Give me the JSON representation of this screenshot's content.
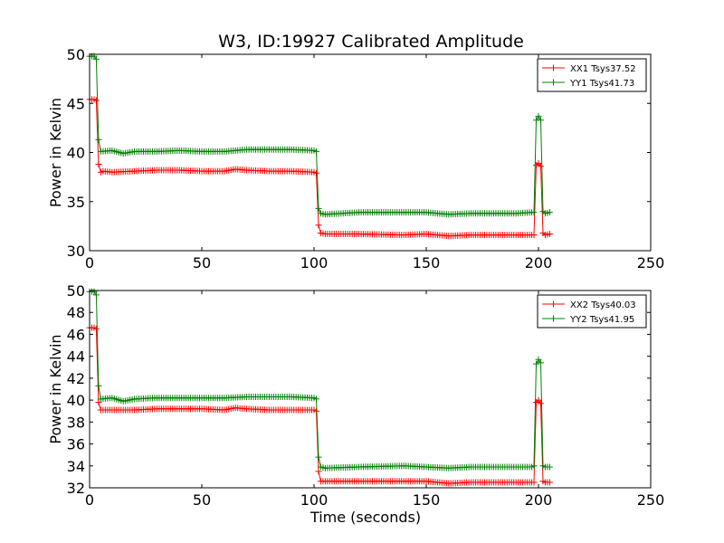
{
  "title": "W3, ID:19927 Calibrated Amplitude",
  "colors": {
    "xx": "#ff0000",
    "yy": "#008000"
  },
  "chart_data": [
    {
      "type": "line",
      "title": "W3, ID:19927 Calibrated Amplitude",
      "xlabel": "",
      "ylabel": "Power in Kelvin",
      "xlim": [
        0,
        250
      ],
      "ylim": [
        30,
        50
      ],
      "xticks": [
        0,
        50,
        100,
        150,
        200,
        250
      ],
      "yticks": [
        30,
        35,
        40,
        45,
        50
      ],
      "grid": false,
      "legend_position": "top-right",
      "series": [
        {
          "name": "XX1 Tsys37.52",
          "color": "#ff0000",
          "points": [
            [
              0,
              45.4
            ],
            [
              1,
              45.4
            ],
            [
              2,
              45.4
            ],
            [
              3,
              45.3
            ],
            [
              4,
              38.8
            ],
            [
              5,
              38.0
            ],
            [
              6,
              38.1
            ],
            [
              10,
              38.0
            ],
            [
              20,
              38.1
            ],
            [
              30,
              38.2
            ],
            [
              40,
              38.2
            ],
            [
              50,
              38.1
            ],
            [
              60,
              38.1
            ],
            [
              65,
              38.3
            ],
            [
              70,
              38.2
            ],
            [
              80,
              38.1
            ],
            [
              90,
              38.1
            ],
            [
              100,
              38.0
            ],
            [
              101,
              37.9
            ],
            [
              102,
              32.6
            ],
            [
              103,
              31.8
            ],
            [
              105,
              31.7
            ],
            [
              120,
              31.7
            ],
            [
              140,
              31.6
            ],
            [
              150,
              31.7
            ],
            [
              160,
              31.5
            ],
            [
              170,
              31.6
            ],
            [
              180,
              31.6
            ],
            [
              190,
              31.6
            ],
            [
              197,
              31.6
            ],
            [
              198,
              31.6
            ],
            [
              199,
              38.7
            ],
            [
              200,
              38.9
            ],
            [
              201,
              38.6
            ],
            [
              202,
              31.8
            ],
            [
              203,
              31.6
            ],
            [
              205,
              31.7
            ]
          ]
        },
        {
          "name": "YY1 Tsys41.73",
          "color": "#008000",
          "points": [
            [
              0,
              49.8
            ],
            [
              1,
              49.8
            ],
            [
              2,
              49.8
            ],
            [
              3,
              49.5
            ],
            [
              4,
              41.3
            ],
            [
              5,
              40.1
            ],
            [
              10,
              40.2
            ],
            [
              15,
              39.9
            ],
            [
              20,
              40.1
            ],
            [
              30,
              40.1
            ],
            [
              40,
              40.2
            ],
            [
              50,
              40.1
            ],
            [
              60,
              40.1
            ],
            [
              70,
              40.3
            ],
            [
              80,
              40.3
            ],
            [
              90,
              40.3
            ],
            [
              100,
              40.2
            ],
            [
              101,
              40.1
            ],
            [
              102,
              34.3
            ],
            [
              103,
              33.8
            ],
            [
              105,
              33.7
            ],
            [
              120,
              33.9
            ],
            [
              140,
              33.9
            ],
            [
              150,
              33.9
            ],
            [
              160,
              33.7
            ],
            [
              170,
              33.8
            ],
            [
              180,
              33.8
            ],
            [
              190,
              33.8
            ],
            [
              197,
              33.9
            ],
            [
              198,
              33.9
            ],
            [
              199,
              43.3
            ],
            [
              200,
              43.7
            ],
            [
              201,
              43.3
            ],
            [
              202,
              34.0
            ],
            [
              203,
              33.8
            ],
            [
              205,
              33.9
            ]
          ]
        }
      ]
    },
    {
      "type": "line",
      "title": "",
      "xlabel": "Time (seconds)",
      "ylabel": "Power in Kelvin",
      "xlim": [
        0,
        250
      ],
      "ylim": [
        32,
        50
      ],
      "xticks": [
        0,
        50,
        100,
        150,
        200,
        250
      ],
      "yticks": [
        32,
        34,
        36,
        38,
        40,
        42,
        44,
        46,
        48,
        50
      ],
      "grid": false,
      "legend_position": "top-right",
      "series": [
        {
          "name": "XX2 Tsys40.03",
          "color": "#ff0000",
          "points": [
            [
              0,
              46.6
            ],
            [
              1,
              46.6
            ],
            [
              2,
              46.6
            ],
            [
              3,
              46.5
            ],
            [
              4,
              39.8
            ],
            [
              5,
              39.1
            ],
            [
              10,
              39.1
            ],
            [
              20,
              39.1
            ],
            [
              30,
              39.2
            ],
            [
              40,
              39.2
            ],
            [
              50,
              39.2
            ],
            [
              60,
              39.1
            ],
            [
              65,
              39.3
            ],
            [
              70,
              39.2
            ],
            [
              80,
              39.1
            ],
            [
              90,
              39.1
            ],
            [
              100,
              39.1
            ],
            [
              101,
              39.0
            ],
            [
              102,
              33.5
            ],
            [
              103,
              32.6
            ],
            [
              105,
              32.6
            ],
            [
              120,
              32.6
            ],
            [
              140,
              32.6
            ],
            [
              150,
              32.6
            ],
            [
              160,
              32.4
            ],
            [
              170,
              32.5
            ],
            [
              180,
              32.5
            ],
            [
              190,
              32.5
            ],
            [
              197,
              32.5
            ],
            [
              198,
              32.5
            ],
            [
              199,
              39.8
            ],
            [
              200,
              40.0
            ],
            [
              201,
              39.7
            ],
            [
              202,
              32.6
            ],
            [
              203,
              32.5
            ],
            [
              205,
              32.5
            ]
          ]
        },
        {
          "name": "YY2 Tsys41.95",
          "color": "#008000",
          "points": [
            [
              0,
              49.9
            ],
            [
              1,
              49.9
            ],
            [
              2,
              49.9
            ],
            [
              3,
              49.6
            ],
            [
              4,
              41.3
            ],
            [
              5,
              40.1
            ],
            [
              10,
              40.2
            ],
            [
              15,
              39.9
            ],
            [
              20,
              40.1
            ],
            [
              30,
              40.2
            ],
            [
              40,
              40.2
            ],
            [
              50,
              40.2
            ],
            [
              60,
              40.2
            ],
            [
              70,
              40.3
            ],
            [
              80,
              40.3
            ],
            [
              90,
              40.3
            ],
            [
              100,
              40.2
            ],
            [
              101,
              40.1
            ],
            [
              102,
              34.8
            ],
            [
              103,
              33.9
            ],
            [
              105,
              33.8
            ],
            [
              120,
              33.9
            ],
            [
              140,
              34.0
            ],
            [
              150,
              33.9
            ],
            [
              160,
              33.8
            ],
            [
              170,
              33.9
            ],
            [
              180,
              33.9
            ],
            [
              190,
              33.9
            ],
            [
              197,
              33.9
            ],
            [
              198,
              34.0
            ],
            [
              199,
              43.3
            ],
            [
              200,
              43.7
            ],
            [
              201,
              43.4
            ],
            [
              202,
              34.0
            ],
            [
              203,
              33.9
            ],
            [
              205,
              33.9
            ]
          ]
        }
      ]
    }
  ]
}
